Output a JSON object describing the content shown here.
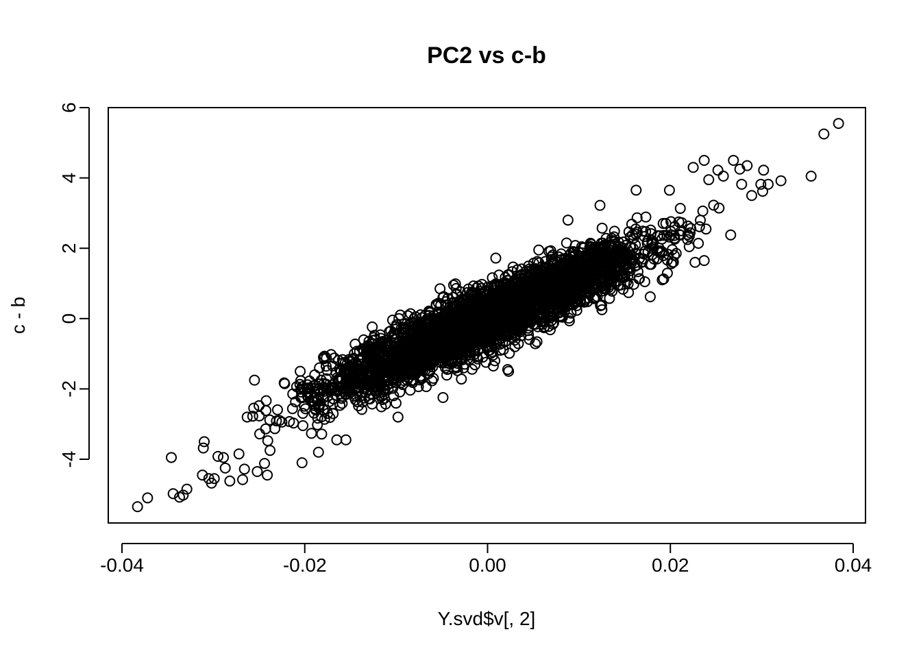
{
  "chart_data": {
    "type": "scatter",
    "title": "PC2 vs c-b",
    "xlabel": "Y.svd$v[, 2]",
    "ylabel": "c - b",
    "xlim": [
      -0.0415,
      0.0415
    ],
    "ylim": [
      -5.8,
      6.0
    ],
    "xticks": [
      -0.04,
      -0.02,
      0.0,
      0.02,
      0.04
    ],
    "xtick_labels": [
      "-0.04",
      "-0.02",
      "0.00",
      "0.02",
      "0.04"
    ],
    "yticks": [
      -4,
      -2,
      0,
      2,
      4,
      6
    ],
    "ytick_labels": [
      "-4",
      "-2",
      "0",
      "2",
      "4",
      "6"
    ],
    "grid": false,
    "marker": "open-circle",
    "point_color": "#000000",
    "trend": {
      "slope": 114,
      "intercept": 0.0,
      "residual_sd": 0.42,
      "n_points_drawn": 4000,
      "note_dense_cloud": true
    },
    "points": [
      {
        "x": -0.0383,
        "y": -5.35
      },
      {
        "x": -0.0372,
        "y": -5.1
      },
      {
        "x": -0.0346,
        "y": -3.95
      },
      {
        "x": -0.0344,
        "y": -4.98
      },
      {
        "x": -0.0337,
        "y": -5.08
      },
      {
        "x": -0.0333,
        "y": -5.02
      },
      {
        "x": -0.0329,
        "y": -4.85
      },
      {
        "x": -0.0312,
        "y": -4.45
      },
      {
        "x": -0.0311,
        "y": -3.68
      },
      {
        "x": -0.031,
        "y": -3.5
      },
      {
        "x": -0.0305,
        "y": -4.55
      },
      {
        "x": -0.0302,
        "y": -4.68
      },
      {
        "x": -0.0299,
        "y": -4.55
      },
      {
        "x": -0.0295,
        "y": -3.92
      },
      {
        "x": -0.0289,
        "y": -3.95
      },
      {
        "x": -0.0287,
        "y": -4.25
      },
      {
        "x": -0.0282,
        "y": -4.62
      },
      {
        "x": -0.0272,
        "y": -3.85
      },
      {
        "x": -0.0268,
        "y": -4.58
      },
      {
        "x": -0.0266,
        "y": -4.28
      },
      {
        "x": -0.0263,
        "y": -2.8
      },
      {
        "x": -0.0255,
        "y": -1.75
      },
      {
        "x": -0.0252,
        "y": -4.35
      },
      {
        "x": -0.0244,
        "y": -4.12
      },
      {
        "x": -0.0241,
        "y": -4.45
      },
      {
        "x": -0.0238,
        "y": -3.75
      },
      {
        "x": -0.0222,
        "y": -1.85
      },
      {
        "x": -0.0203,
        "y": -4.1
      },
      {
        "x": -0.0205,
        "y": -1.5
      },
      {
        "x": -0.0185,
        "y": -3.8
      },
      {
        "x": -0.0175,
        "y": -2.7
      },
      {
        "x": -0.0165,
        "y": -3.45
      },
      {
        "x": -0.0155,
        "y": -3.45
      },
      {
        "x": -0.0098,
        "y": -2.8
      },
      {
        "x": -0.0097,
        "y": -0.0
      },
      {
        "x": -0.0052,
        "y": 0.85
      },
      {
        "x": 0.0009,
        "y": 1.72
      },
      {
        "x": 0.0022,
        "y": -1.45
      },
      {
        "x": 0.0023,
        "y": -1.5
      },
      {
        "x": 0.0056,
        "y": 1.95
      },
      {
        "x": 0.0088,
        "y": 2.8
      },
      {
        "x": 0.0123,
        "y": 3.22
      },
      {
        "x": 0.0178,
        "y": 0.62
      },
      {
        "x": 0.0199,
        "y": 3.65
      },
      {
        "x": 0.0225,
        "y": 4.3
      },
      {
        "x": 0.0227,
        "y": 1.6
      },
      {
        "x": 0.0237,
        "y": 1.65
      },
      {
        "x": 0.0237,
        "y": 4.5
      },
      {
        "x": 0.0242,
        "y": 3.95
      },
      {
        "x": 0.0252,
        "y": 4.22
      },
      {
        "x": 0.0258,
        "y": 4.05
      },
      {
        "x": 0.0266,
        "y": 2.38
      },
      {
        "x": 0.0269,
        "y": 4.5
      },
      {
        "x": 0.0276,
        "y": 4.25
      },
      {
        "x": 0.0284,
        "y": 4.35
      },
      {
        "x": 0.0278,
        "y": 3.82
      },
      {
        "x": 0.0289,
        "y": 3.5
      },
      {
        "x": 0.0299,
        "y": 3.82
      },
      {
        "x": 0.0302,
        "y": 4.22
      },
      {
        "x": 0.0301,
        "y": 3.62
      },
      {
        "x": 0.0307,
        "y": 3.82
      },
      {
        "x": 0.0321,
        "y": 3.92
      },
      {
        "x": 0.0354,
        "y": 4.05
      },
      {
        "x": 0.0368,
        "y": 5.25
      },
      {
        "x": 0.0384,
        "y": 5.55
      }
    ]
  }
}
